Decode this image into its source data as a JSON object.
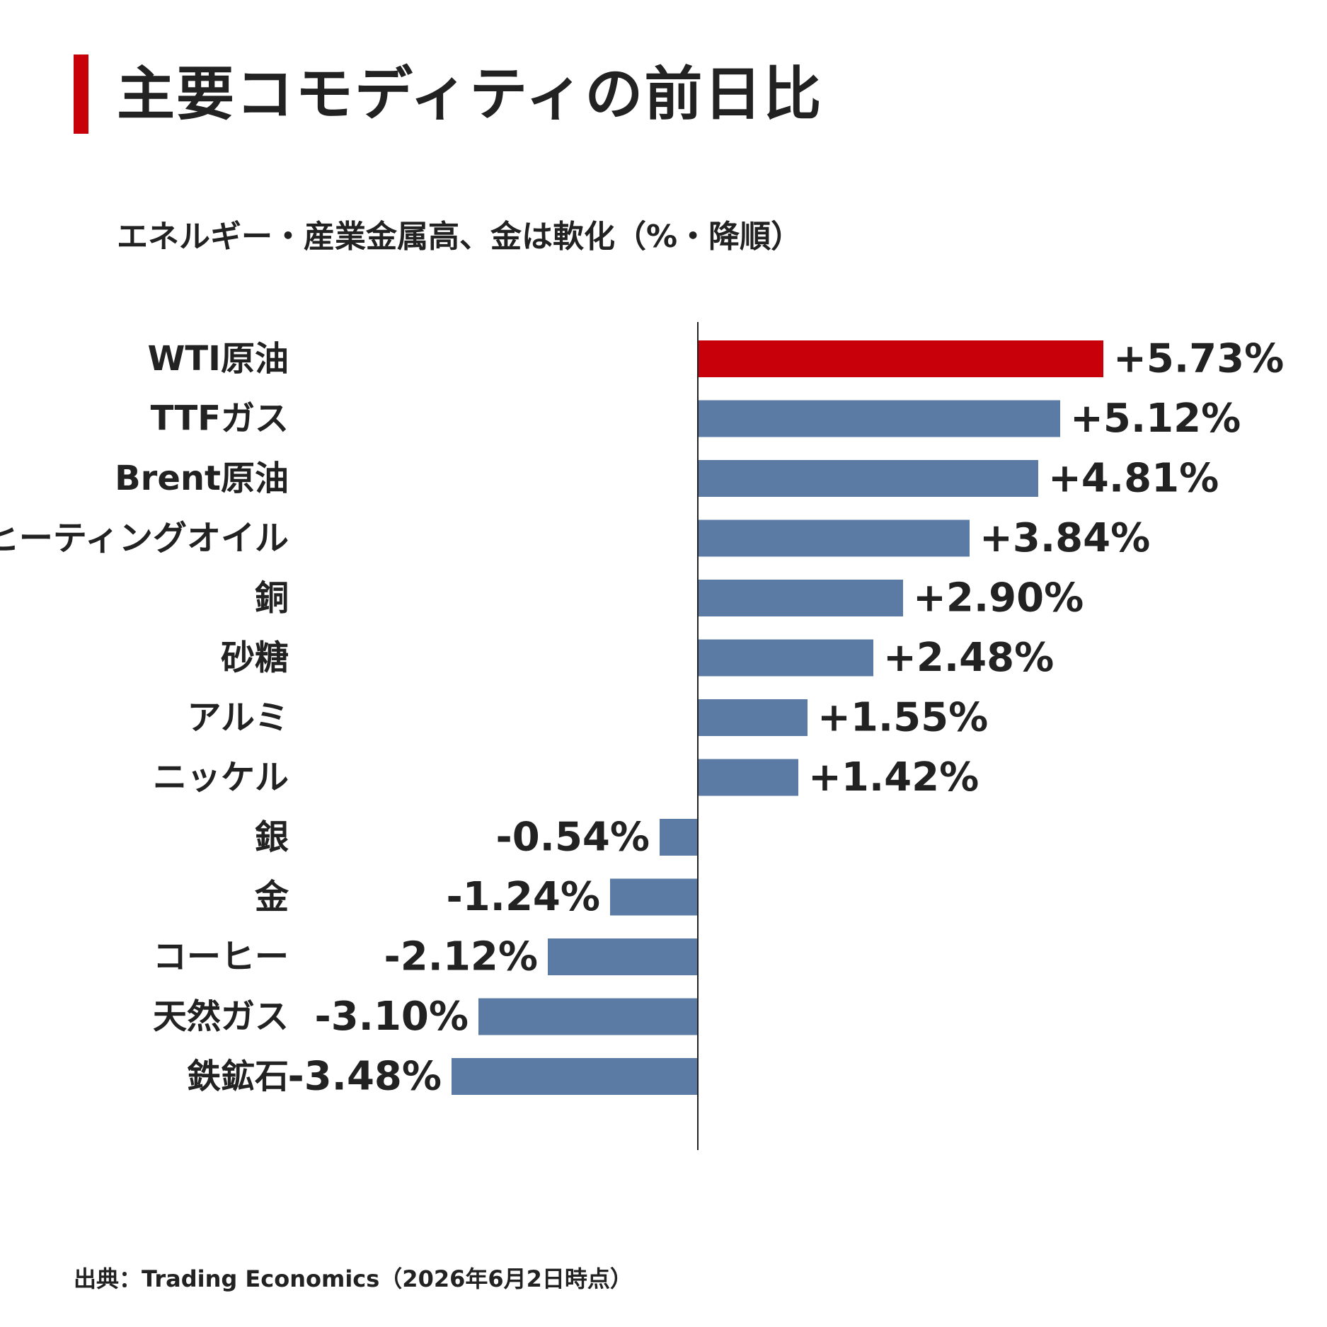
{
  "header": {
    "title": "主要コモディティの前日比",
    "subtitle": "エネルギー・産業金属高、金は軟化（%・降順）",
    "accent_color": "#c8000a"
  },
  "footer": {
    "source": "出典：Trading Economics（2026年6月2日時点）"
  },
  "chart_data": {
    "type": "bar",
    "orientation": "horizontal",
    "title": "主要コモディティの前日比",
    "subtitle": "エネルギー・産業金属高、金は軟化（%・降順）",
    "categories": [
      "WTI原油",
      "TTFガス",
      "Brent原油",
      "ヒーティングオイル",
      "銅",
      "砂糖",
      "アルミ",
      "ニッケル",
      "銀",
      "金",
      "コーヒー",
      "天然ガス",
      "鉄鉱石"
    ],
    "values": [
      5.73,
      5.12,
      4.81,
      3.84,
      2.9,
      2.48,
      1.55,
      1.42,
      -0.54,
      -1.24,
      -2.12,
      -3.1,
      -3.48
    ],
    "value_labels": [
      "+5.73%",
      "+5.12%",
      "+4.81%",
      "+3.84%",
      "+2.90%",
      "+2.48%",
      "+1.55%",
      "+1.42%",
      "-0.54%",
      "-1.24%",
      "-2.12%",
      "-3.10%",
      "-3.48%"
    ],
    "xlim": [
      -3.48,
      5.73
    ],
    "highlight_index": 0,
    "highlight_color": "#c8000a",
    "bar_color": "#5b7ba4",
    "grid": false,
    "legend": "none"
  }
}
